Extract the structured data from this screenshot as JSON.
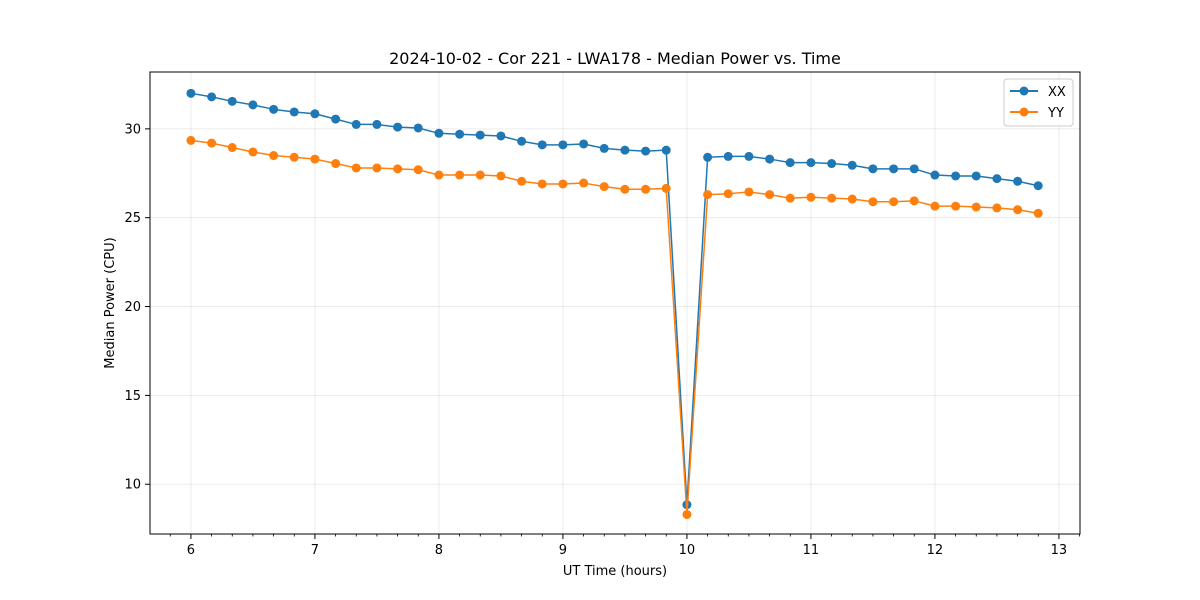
{
  "chart_data": {
    "type": "line",
    "title": "2024-10-02 - Cor 221 - LWA178 - Median Power vs. Time",
    "xlabel": "UT Time (hours)",
    "ylabel": "Median Power (CPU)",
    "xlim": [
      5.67,
      13.17
    ],
    "ylim": [
      7.2,
      33.2
    ],
    "xticks": [
      6,
      7,
      8,
      9,
      10,
      11,
      12,
      13
    ],
    "yticks": [
      10,
      15,
      20,
      25,
      30
    ],
    "grid": true,
    "legend_position": "top-right",
    "x": [
      6.0,
      6.167,
      6.333,
      6.5,
      6.667,
      6.833,
      7.0,
      7.167,
      7.333,
      7.5,
      7.667,
      7.833,
      8.0,
      8.167,
      8.333,
      8.5,
      8.667,
      8.833,
      9.0,
      9.167,
      9.333,
      9.5,
      9.667,
      9.833,
      10.0,
      10.167,
      10.333,
      10.5,
      10.667,
      10.833,
      11.0,
      11.167,
      11.333,
      11.5,
      11.667,
      11.833,
      12.0,
      12.167,
      12.333,
      12.5,
      12.667,
      12.833
    ],
    "series": [
      {
        "name": "XX",
        "color": "#1f77b4",
        "values": [
          32.0,
          31.8,
          31.55,
          31.35,
          31.1,
          30.95,
          30.85,
          30.55,
          30.25,
          30.25,
          30.1,
          30.05,
          29.75,
          29.7,
          29.65,
          29.6,
          29.3,
          29.1,
          29.1,
          29.15,
          28.9,
          28.8,
          28.75,
          28.8,
          8.85,
          28.4,
          28.45,
          28.45,
          28.3,
          28.1,
          28.1,
          28.05,
          27.95,
          27.75,
          27.75,
          27.75,
          27.4,
          27.35,
          27.35,
          27.2,
          27.05,
          26.8
        ]
      },
      {
        "name": "YY",
        "color": "#ff7f0e",
        "values": [
          29.35,
          29.2,
          28.95,
          28.7,
          28.5,
          28.4,
          28.3,
          28.05,
          27.8,
          27.8,
          27.75,
          27.7,
          27.4,
          27.4,
          27.4,
          27.35,
          27.05,
          26.9,
          26.9,
          26.95,
          26.75,
          26.6,
          26.6,
          26.65,
          8.3,
          26.3,
          26.35,
          26.45,
          26.3,
          26.1,
          26.15,
          26.1,
          26.05,
          25.9,
          25.9,
          25.95,
          25.65,
          25.65,
          25.6,
          25.55,
          25.45,
          25.25
        ]
      }
    ]
  }
}
